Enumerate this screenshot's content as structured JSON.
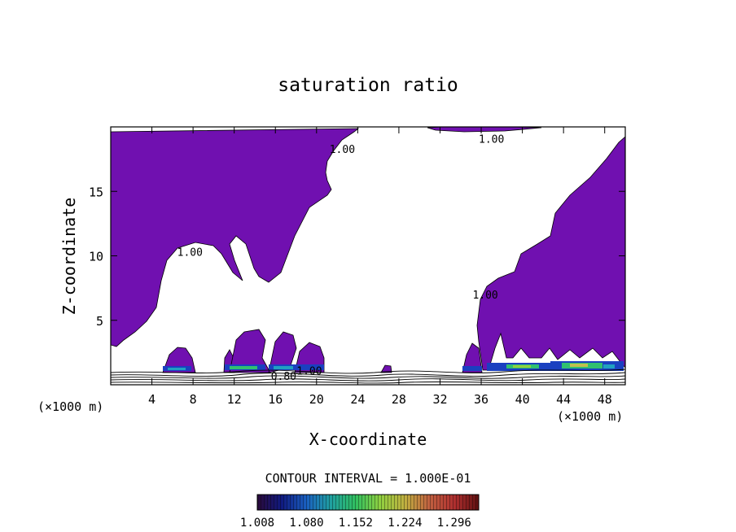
{
  "chart_data": {
    "type": "contour",
    "title": "saturation ratio",
    "xlabel": "X-coordinate",
    "ylabel": "Z-coordinate",
    "x_unit_left": "(×1000 m)",
    "x_unit_right": "(×1000 m)",
    "xlim": [
      0,
      50
    ],
    "ylim": [
      0,
      20
    ],
    "x_ticks": [
      4,
      8,
      12,
      16,
      20,
      24,
      28,
      32,
      36,
      40,
      44,
      48
    ],
    "y_ticks": [
      5,
      10,
      15
    ],
    "contour_labels": [
      {
        "text": "1.00",
        "x": 37,
        "y": 19.1
      },
      {
        "text": "1.00",
        "x": 22.5,
        "y": 18.3
      },
      {
        "text": "1.00",
        "x": 7.7,
        "y": 10.3
      },
      {
        "text": "1.00",
        "x": 36.4,
        "y": 7.0
      },
      {
        "text": "0.80",
        "x": 16.8,
        "y": 0.7
      },
      {
        "text": "1.00",
        "x": 19.3,
        "y": 1.1
      }
    ],
    "contour_interval_text": "CONTOUR INTERVAL = 1.000E-01",
    "colorbar": {
      "min": 1.008,
      "max": 1.332,
      "tick_labels": [
        "1.008",
        "1.080",
        "1.152",
        "1.224",
        "1.296"
      ],
      "colors": [
        "#2a0a3a",
        "#101a80",
        "#1a60c0",
        "#20a0a0",
        "#30c060",
        "#90d040",
        "#c0b040",
        "#c06040",
        "#b03030",
        "#601010"
      ]
    },
    "fill_color": "#7010b0",
    "grid": false,
    "legend": "none"
  }
}
